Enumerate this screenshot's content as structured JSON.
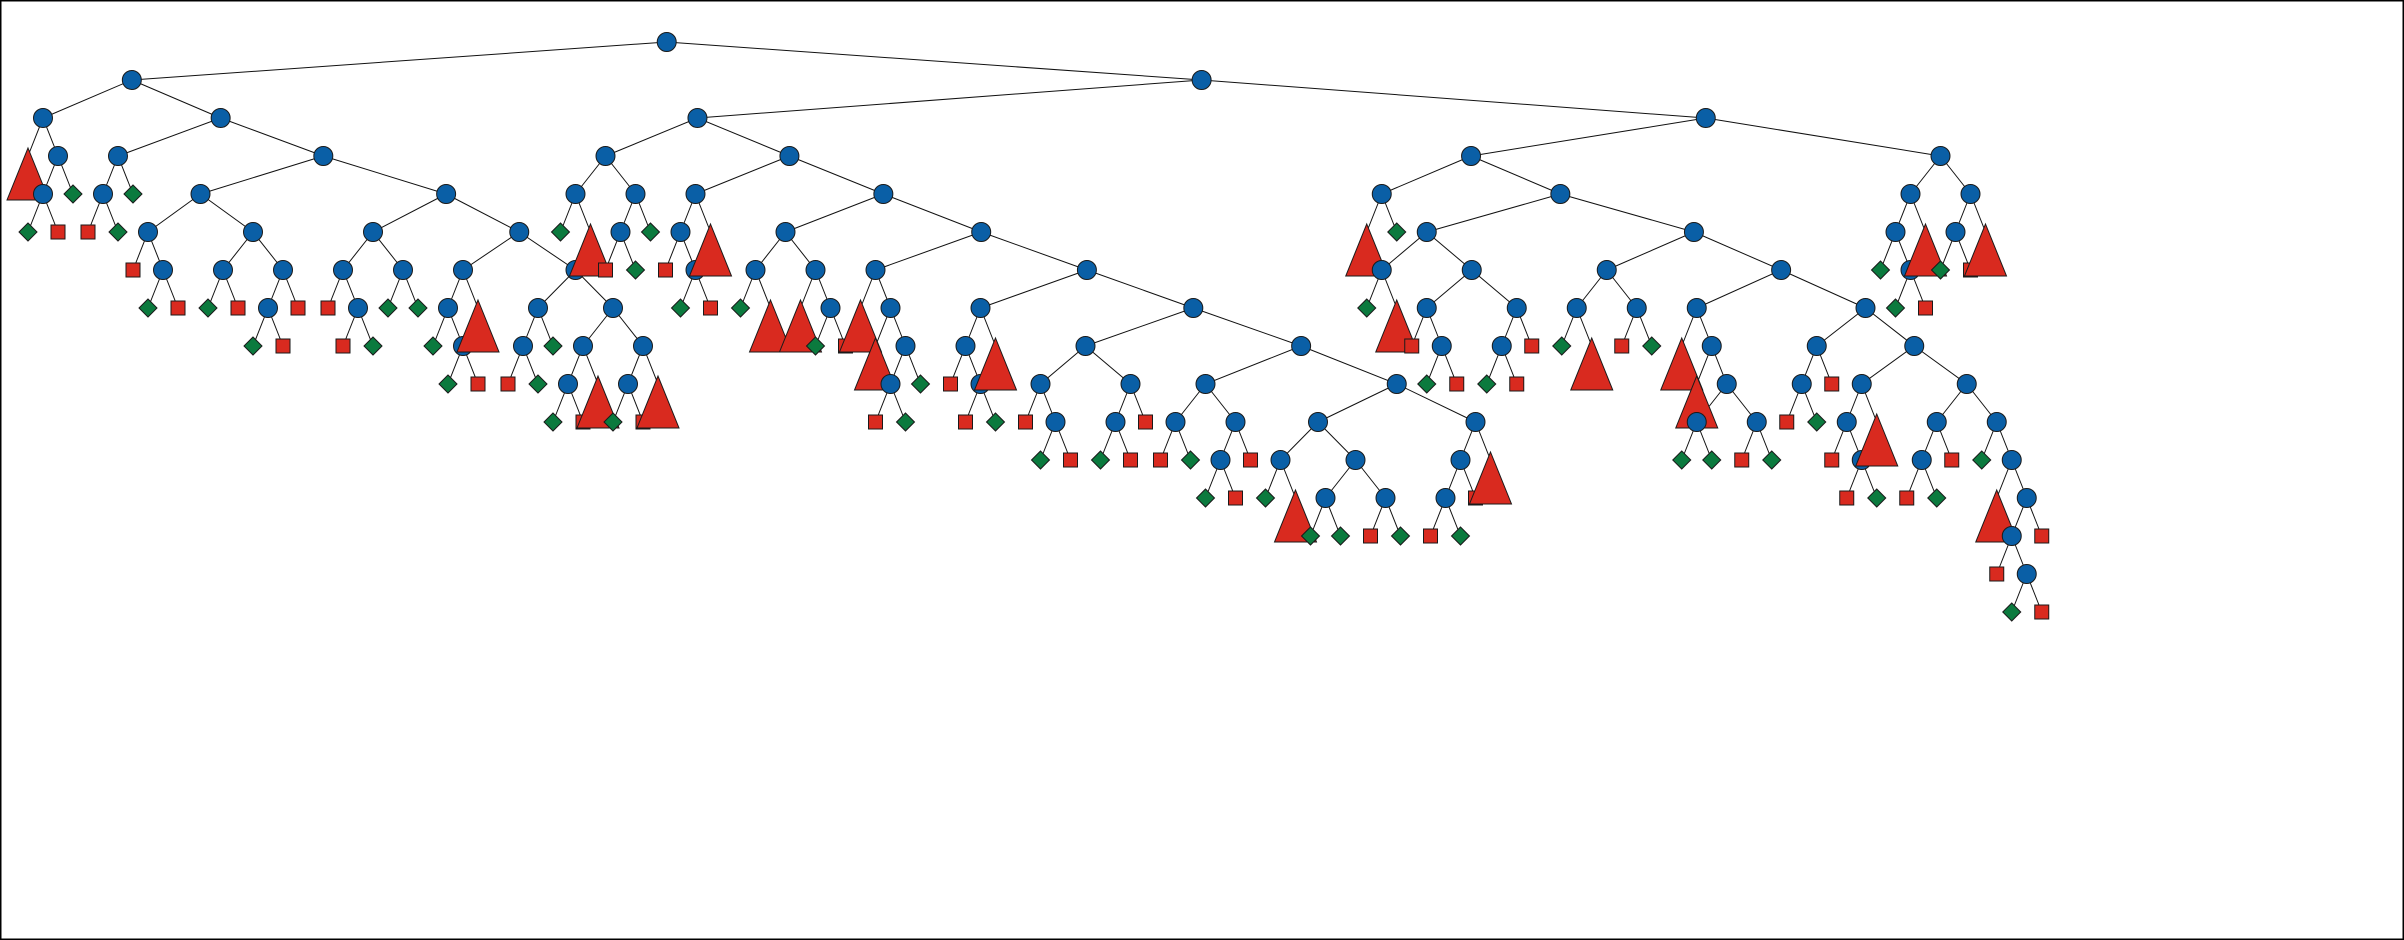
{
  "colors": {
    "inner_node": "#0a5fa6",
    "leaf_square": "#d92a1f",
    "leaf_diamond": "#0b7a3e",
    "collapsed_subtree": "#d92a1f",
    "edge": "#111111",
    "frame": "#000000"
  },
  "legend": {
    "circle": "inner-node",
    "square": "leaf-red-square",
    "diamond": "leaf-green-diamond",
    "triangle": "collapsed-subtree"
  },
  "tree": [
    "n",
    [
      "n",
      [
        "n",
        [
          "t"
        ],
        [
          "n",
          [
            "n",
            [
              "d"
            ],
            [
              "s"
            ]
          ],
          [
            "d"
          ]
        ]
      ],
      [
        "n",
        [
          "n",
          [
            "n",
            [
              "s"
            ],
            [
              "d"
            ]
          ],
          [
            "d"
          ]
        ],
        [
          "n",
          [
            "n",
            [
              "n",
              [
                "s"
              ],
              [
                "n",
                [
                  "d"
                ],
                [
                  "s"
                ]
              ]
            ],
            [
              "n",
              [
                "n",
                [
                  "d"
                ],
                [
                  "s"
                ]
              ],
              [
                "n",
                [
                  "n",
                  [
                    "d"
                  ],
                  [
                    "s"
                  ]
                ],
                [
                  "s"
                ]
              ]
            ]
          ],
          [
            "n",
            [
              "n",
              [
                "n",
                [
                  "s"
                ],
                [
                  "n",
                  [
                    "s"
                  ],
                  [
                    "d"
                  ]
                ]
              ],
              [
                "n",
                [
                  "d"
                ],
                [
                  "d"
                ]
              ]
            ],
            [
              "n",
              [
                "n",
                [
                  "n",
                  [
                    "d"
                  ],
                  [
                    "n",
                    [
                      "d"
                    ],
                    [
                      "s"
                    ]
                  ]
                ],
                [
                  "t"
                ]
              ],
              [
                "n",
                [
                  "n",
                  [
                    "n",
                    [
                      "s"
                    ],
                    [
                      "d"
                    ]
                  ],
                  [
                    "d"
                  ]
                ],
                [
                  "n",
                  [
                    "n",
                    [
                      "n",
                      [
                        "d"
                      ],
                      [
                        "s"
                      ]
                    ],
                    [
                      "t"
                    ]
                  ],
                  [
                    "n",
                    [
                      "n",
                      [
                        "d"
                      ],
                      [
                        "s"
                      ]
                    ],
                    [
                      "t"
                    ]
                  ]
                ]
              ]
            ]
          ]
        ]
      ]
    ],
    [
      "n",
      [
        "n",
        [
          "n",
          [
            "n",
            [
              "d"
            ],
            [
              "t"
            ]
          ],
          [
            "n",
            [
              "n",
              [
                "s"
              ],
              [
                "d"
              ]
            ],
            [
              "d"
            ]
          ]
        ],
        [
          "n",
          [
            "n",
            [
              "n",
              [
                "s"
              ],
              [
                "n",
                [
                  "d"
                ],
                [
                  "s"
                ]
              ]
            ],
            [
              "t"
            ]
          ],
          [
            "n",
            [
              "n",
              [
                "n",
                [
                  "d"
                ],
                [
                  "t"
                ]
              ],
              [
                "n",
                [
                  "t"
                ],
                [
                  "n",
                  [
                    "d"
                  ],
                  [
                    "s"
                  ]
                ]
              ]
            ],
            [
              "n",
              [
                "n",
                [
                  "t"
                ],
                [
                  "n",
                  [
                    "t"
                  ],
                  [
                    "n",
                    [
                      "n",
                      [
                        "s"
                      ],
                      [
                        "d"
                      ]
                    ],
                    [
                      "d"
                    ]
                  ]
                ]
              ],
              [
                "n",
                [
                  "n",
                  [
                    "n",
                    [
                      "s"
                    ],
                    [
                      "n",
                      [
                        "s"
                      ],
                      [
                        "d"
                      ]
                    ]
                  ],
                  [
                    "t"
                  ]
                ],
                [
                  "n",
                  [
                    "n",
                    [
                      "n",
                      [
                        "s"
                      ],
                      [
                        "n",
                        [
                          "d"
                        ],
                        [
                          "s"
                        ]
                      ]
                    ],
                    [
                      "n",
                      [
                        "n",
                        [
                          "d"
                        ],
                        [
                          "s"
                        ]
                      ],
                      [
                        "s"
                      ]
                    ]
                  ],
                  [
                    "n",
                    [
                      "n",
                      [
                        "n",
                        [
                          "s"
                        ],
                        [
                          "d"
                        ]
                      ],
                      [
                        "n",
                        [
                          "n",
                          [
                            "d"
                          ],
                          [
                            "s"
                          ]
                        ],
                        [
                          "s"
                        ]
                      ]
                    ],
                    [
                      "n",
                      [
                        "n",
                        [
                          "n",
                          [
                            "d"
                          ],
                          [
                            "t"
                          ]
                        ],
                        [
                          "n",
                          [
                            "n",
                            [
                              "d"
                            ],
                            [
                              "d"
                            ]
                          ],
                          [
                            "n",
                            [
                              "s"
                            ],
                            [
                              "d"
                            ]
                          ]
                        ]
                      ],
                      [
                        "n",
                        [
                          "n",
                          [
                            "n",
                            [
                              "s"
                            ],
                            [
                              "d"
                            ]
                          ],
                          [
                            "s"
                          ]
                        ],
                        [
                          "t"
                        ]
                      ]
                    ]
                  ]
                ]
              ]
            ]
          ]
        ]
      ],
      [
        "n",
        [
          "n",
          [
            "n",
            [
              "t"
            ],
            [
              "d"
            ]
          ],
          [
            "n",
            [
              "n",
              [
                "n",
                [
                  "d"
                ],
                [
                  "t"
                ]
              ],
              [
                "n",
                [
                  "n",
                  [
                    "s"
                  ],
                  [
                    "n",
                    [
                      "d"
                    ],
                    [
                      "s"
                    ]
                  ]
                ],
                [
                  "n",
                  [
                    "n",
                    [
                      "d"
                    ],
                    [
                      "s"
                    ]
                  ],
                  [
                    "s"
                  ]
                ]
              ]
            ],
            [
              "n",
              [
                "n",
                [
                  "n",
                  [
                    "d"
                  ],
                  [
                    "t"
                  ]
                ],
                [
                  "n",
                  [
                    "s"
                  ],
                  [
                    "d"
                  ]
                ]
              ],
              [
                "n",
                [
                  "n",
                  [
                    "t"
                  ],
                  [
                    "n",
                    [
                      "t"
                    ],
                    [
                      "n",
                      [
                        "n",
                        [
                          "d"
                        ],
                        [
                          "d"
                        ]
                      ],
                      [
                        "n",
                        [
                          "s"
                        ],
                        [
                          "d"
                        ]
                      ]
                    ]
                  ]
                ],
                [
                  "n",
                  [
                    "n",
                    [
                      "n",
                      [
                        "s"
                      ],
                      [
                        "d"
                      ]
                    ],
                    [
                      "s"
                    ]
                  ],
                  [
                    "n",
                    [
                      "n",
                      [
                        "n",
                        [
                          "s"
                        ],
                        [
                          "n",
                          [
                            "s"
                          ],
                          [
                            "d"
                          ]
                        ]
                      ],
                      [
                        "t"
                      ]
                    ],
                    [
                      "n",
                      [
                        "n",
                        [
                          "n",
                          [
                            "s"
                          ],
                          [
                            "d"
                          ]
                        ],
                        [
                          "s"
                        ]
                      ],
                      [
                        "n",
                        [
                          "d"
                        ],
                        [
                          "n",
                          [
                            "t"
                          ],
                          [
                            "n",
                            [
                              "n",
                              [
                                "s"
                              ],
                              [
                                "n",
                                [
                                  "d"
                                ],
                                [
                                  "s"
                                ]
                              ]
                            ],
                            [
                              "s"
                            ]
                          ]
                        ]
                      ]
                    ]
                  ]
                ]
              ]
            ]
          ]
        ],
        [
          "n",
          [
            "n",
            [
              "n",
              [
                "d"
              ],
              [
                "n",
                [
                  "d"
                ],
                [
                  "s"
                ]
              ]
            ],
            [
              "t"
            ]
          ],
          [
            "n",
            [
              "n",
              [
                "d"
              ],
              [
                "s"
              ]
            ],
            [
              "t"
            ]
          ]
        ]
      ]
    ]
  ]
}
